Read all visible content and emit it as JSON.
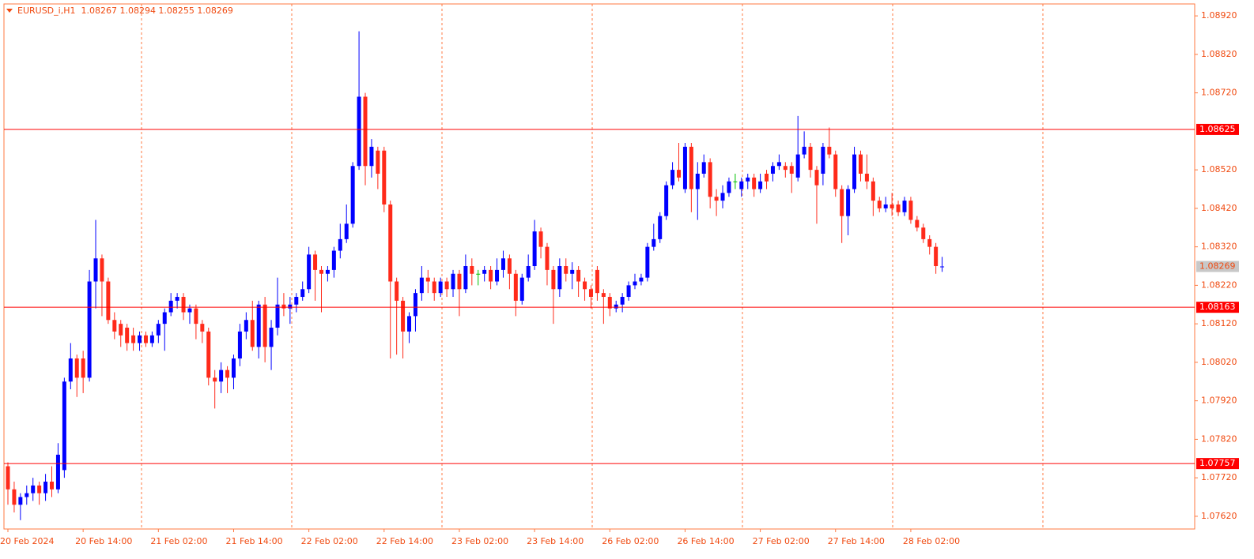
{
  "chart_data": {
    "type": "candlestick",
    "title": "EURUSD_i,H1  1.08267 1.08294 1.08255 1.08269",
    "categories": [
      "20 Feb 2024",
      null,
      null,
      null,
      null,
      null,
      null,
      null,
      null,
      null,
      null,
      null,
      "20 Feb 14:00",
      null,
      null,
      null,
      null,
      null,
      null,
      null,
      null,
      null,
      null,
      null,
      "21 Feb 02:00",
      null,
      null,
      null,
      null,
      null,
      null,
      null,
      null,
      null,
      null,
      null,
      "21 Feb 14:00",
      null,
      null,
      null,
      null,
      null,
      null,
      null,
      null,
      null,
      null,
      null,
      "22 Feb 02:00",
      null,
      null,
      null,
      null,
      null,
      null,
      null,
      null,
      null,
      null,
      null,
      "22 Feb 14:00",
      null,
      null,
      null,
      null,
      null,
      null,
      null,
      null,
      null,
      null,
      null,
      "23 Feb 02:00",
      null,
      null,
      null,
      null,
      null,
      null,
      null,
      null,
      null,
      null,
      null,
      "23 Feb 14:00",
      null,
      null,
      null,
      null,
      null,
      null,
      null,
      null,
      null,
      null,
      null,
      "26 Feb 02:00",
      null,
      null,
      null,
      null,
      null,
      null,
      null,
      null,
      null,
      null,
      null,
      "26 Feb 14:00",
      null,
      null,
      null,
      null,
      null,
      null,
      null,
      null,
      null,
      null,
      null,
      "27 Feb 02:00",
      null,
      null,
      null,
      null,
      null,
      null,
      null,
      null,
      null,
      null,
      null,
      "27 Feb 14:00",
      null,
      null,
      null,
      null,
      null,
      null,
      null,
      null,
      null,
      null,
      null,
      "28 Feb 02:00",
      null,
      null,
      null,
      null,
      null
    ],
    "open": [
      1.0775,
      1.0769,
      1.0765,
      1.0767,
      1.0768,
      1.077,
      1.0768,
      1.0771,
      1.0769,
      1.0774,
      1.0797,
      1.0803,
      1.0803,
      1.0798,
      1.0823,
      1.0829,
      1.0823,
      1.0813,
      1.0812,
      1.0811,
      1.0809,
      1.0807,
      1.0809,
      1.0807,
      1.0809,
      1.0812,
      1.0815,
      1.0818,
      1.0819,
      1.0815,
      1.0816,
      1.0812,
      1.081,
      1.0798,
      1.0797,
      1.08,
      1.0798,
      1.0803,
      1.081,
      1.0813,
      1.0806,
      1.0817,
      1.0806,
      1.0811,
      1.0817,
      1.0816,
      1.0817,
      1.0819,
      1.0821,
      1.083,
      1.0826,
      1.0825,
      1.0826,
      1.0831,
      1.0834,
      1.0838,
      1.0853,
      1.0871,
      1.0853,
      1.0857,
      1.0857,
      1.0843,
      1.0823,
      1.0818,
      1.081,
      1.0814,
      1.082,
      1.0824,
      1.0823,
      1.082,
      1.0823,
      1.0821,
      1.0825,
      1.0821,
      1.0827,
      1.0825,
      1.0825,
      1.0826,
      1.0823,
      1.0826,
      1.0829,
      1.0825,
      1.0818,
      1.0824,
      1.0827,
      1.0836,
      1.0832,
      1.0826,
      1.0821,
      1.0827,
      1.0825,
      1.0826,
      1.0823,
      1.0821,
      1.0826,
      1.082,
      1.0819,
      1.0816,
      1.0817,
      1.0819,
      1.0822,
      1.0823,
      1.0824,
      1.0832,
      1.0834,
      1.084,
      1.0848,
      1.0852,
      1.0847,
      1.0858,
      1.0847,
      1.0851,
      1.0854,
      1.0845,
      1.0844,
      1.0846,
      1.0849,
      1.0847,
      1.0849,
      1.085,
      1.0847,
      1.0851,
      1.0851,
      1.0853,
      1.0853,
      1.0853,
      1.085,
      1.0856,
      1.0858,
      1.0852,
      1.0851,
      1.0858,
      1.0856,
      1.0847,
      1.084,
      1.0847,
      1.0856,
      1.0851,
      1.0849,
      1.0844,
      1.0842,
      1.0843,
      1.0843,
      1.0841,
      1.0844,
      1.0839,
      1.0837,
      1.0834,
      1.0832,
      1.08267
    ],
    "high": [
      1.0776,
      1.0771,
      1.0768,
      1.077,
      1.0772,
      1.0771,
      1.0773,
      1.0775,
      1.0781,
      1.0798,
      1.0807,
      1.0804,
      1.0805,
      1.0826,
      1.0839,
      1.083,
      1.0824,
      1.0815,
      1.0813,
      1.0812,
      1.0811,
      1.081,
      1.081,
      1.081,
      1.0813,
      1.0816,
      1.082,
      1.082,
      1.082,
      1.0817,
      1.0817,
      1.0813,
      1.0811,
      1.08,
      1.0802,
      1.0801,
      1.0804,
      1.0812,
      1.0815,
      1.0818,
      1.0818,
      1.0819,
      1.0813,
      1.0824,
      1.082,
      1.0819,
      1.082,
      1.0823,
      1.0832,
      1.0831,
      1.0827,
      1.0827,
      1.0832,
      1.0838,
      1.0843,
      1.0854,
      1.0888,
      1.0872,
      1.086,
      1.0858,
      1.0858,
      1.0844,
      1.0824,
      1.0819,
      1.0815,
      1.0821,
      1.0827,
      1.0826,
      1.0824,
      1.0824,
      1.0824,
      1.0826,
      1.0826,
      1.083,
      1.0829,
      1.0826,
      1.0827,
      1.0827,
      1.0829,
      1.0831,
      1.083,
      1.0826,
      1.0825,
      1.083,
      1.0839,
      1.0837,
      1.0833,
      1.0827,
      1.0829,
      1.0829,
      1.0828,
      1.0827,
      1.0824,
      1.0822,
      1.0827,
      1.0821,
      1.082,
      1.0818,
      1.082,
      1.0823,
      1.0825,
      1.0825,
      1.0833,
      1.0838,
      1.0841,
      1.0849,
      1.0854,
      1.0859,
      1.0859,
      1.0859,
      1.0854,
      1.0856,
      1.0855,
      1.0847,
      1.0848,
      1.085,
      1.0851,
      1.085,
      1.0851,
      1.0851,
      1.0851,
      1.0852,
      1.0854,
      1.0856,
      1.0854,
      1.0854,
      1.0866,
      1.0862,
      1.0859,
      1.0853,
      1.0859,
      1.0863,
      1.0857,
      1.0848,
      1.0848,
      1.0858,
      1.0857,
      1.0856,
      1.085,
      1.0845,
      1.0845,
      1.0846,
      1.0844,
      1.0845,
      1.0845,
      1.084,
      1.0838,
      1.0835,
      1.0833,
      1.08294
    ],
    "low": [
      1.0765,
      1.0763,
      1.0761,
      1.0765,
      1.0766,
      1.0765,
      1.0766,
      1.0767,
      1.0768,
      1.0772,
      1.0795,
      1.0793,
      1.0794,
      1.0797,
      1.0816,
      1.0814,
      1.0812,
      1.0808,
      1.0806,
      1.0805,
      1.0805,
      1.0805,
      1.0806,
      1.0806,
      1.0807,
      1.0805,
      1.0814,
      1.0816,
      1.0813,
      1.0812,
      1.0808,
      1.0807,
      1.0796,
      1.079,
      1.0794,
      1.0794,
      1.0795,
      1.0801,
      1.0808,
      1.0805,
      1.0803,
      1.0802,
      1.08,
      1.0809,
      1.0814,
      1.0812,
      1.0815,
      1.0818,
      1.082,
      1.0818,
      1.0815,
      1.0823,
      1.0824,
      1.0829,
      1.0833,
      1.0837,
      1.0852,
      1.0848,
      1.085,
      1.0847,
      1.0841,
      1.0803,
      1.0804,
      1.0803,
      1.0807,
      1.081,
      1.0818,
      1.082,
      1.0818,
      1.0819,
      1.0819,
      1.0819,
      1.0814,
      1.082,
      1.0822,
      1.0822,
      1.0823,
      1.0821,
      1.0822,
      1.0824,
      1.0821,
      1.0814,
      1.0817,
      1.0823,
      1.0826,
      1.0829,
      1.0822,
      1.0812,
      1.0819,
      1.0823,
      1.0821,
      1.0819,
      1.0818,
      1.0816,
      1.0818,
      1.0812,
      1.0814,
      1.0815,
      1.0815,
      1.0818,
      1.0821,
      1.0822,
      1.0823,
      1.0831,
      1.0833,
      1.0839,
      1.0847,
      1.0849,
      1.0846,
      1.0841,
      1.0839,
      1.085,
      1.0842,
      1.084,
      1.0842,
      1.0845,
      1.0847,
      1.0845,
      1.0847,
      1.0845,
      1.0846,
      1.0847,
      1.0849,
      1.0852,
      1.085,
      1.0846,
      1.0849,
      1.0855,
      1.085,
      1.0838,
      1.0848,
      1.0855,
      1.0845,
      1.0833,
      1.0835,
      1.0846,
      1.0849,
      1.0847,
      1.084,
      1.0841,
      1.0841,
      1.084,
      1.084,
      1.084,
      1.0838,
      1.0836,
      1.0833,
      1.083,
      1.0825,
      1.08255
    ],
    "close": [
      1.0769,
      1.0765,
      1.0767,
      1.0768,
      1.077,
      1.0768,
      1.0771,
      1.0769,
      1.0778,
      1.0797,
      1.0803,
      1.0798,
      1.0798,
      1.0823,
      1.0829,
      1.0823,
      1.0813,
      1.081,
      1.0809,
      1.0807,
      1.0807,
      1.0809,
      1.0807,
      1.0809,
      1.0812,
      1.0815,
      1.0818,
      1.0819,
      1.0815,
      1.0816,
      1.0812,
      1.081,
      1.0798,
      1.0797,
      1.08,
      1.0798,
      1.0803,
      1.081,
      1.0813,
      1.0806,
      1.0817,
      1.0806,
      1.0811,
      1.0817,
      1.0816,
      1.0817,
      1.0819,
      1.0821,
      1.083,
      1.0826,
      1.0825,
      1.0826,
      1.0831,
      1.0834,
      1.0838,
      1.0853,
      1.0871,
      1.0853,
      1.0858,
      1.0851,
      1.0843,
      1.0823,
      1.0818,
      1.081,
      1.0814,
      1.082,
      1.0824,
      1.0823,
      1.082,
      1.0823,
      1.0821,
      1.0825,
      1.0821,
      1.0827,
      1.0825,
      1.0825,
      1.0826,
      1.0823,
      1.0826,
      1.0829,
      1.0825,
      1.0818,
      1.0824,
      1.0827,
      1.0836,
      1.0832,
      1.0826,
      1.0821,
      1.0827,
      1.0825,
      1.0826,
      1.0823,
      1.0821,
      1.0819,
      1.082,
      1.0819,
      1.0816,
      1.0817,
      1.0819,
      1.0822,
      1.0823,
      1.0824,
      1.0832,
      1.0834,
      1.084,
      1.0848,
      1.0852,
      1.085,
      1.0858,
      1.0847,
      1.0851,
      1.0854,
      1.0845,
      1.0844,
      1.0846,
      1.0849,
      1.0849,
      1.0849,
      1.085,
      1.0847,
      1.0849,
      1.0849,
      1.0853,
      1.0854,
      1.0852,
      1.0851,
      1.0856,
      1.0858,
      1.0852,
      1.0848,
      1.0858,
      1.0856,
      1.0847,
      1.084,
      1.0847,
      1.0856,
      1.0851,
      1.0849,
      1.0844,
      1.0842,
      1.0843,
      1.0842,
      1.0841,
      1.0844,
      1.0839,
      1.0837,
      1.0834,
      1.0832,
      1.0827,
      1.08269
    ],
    "up_color": "#0000ff",
    "down_color": "#ff2a1a",
    "doji_color": "#00c000",
    "ylim": [
      1.07587,
      1.08951
    ],
    "yticks": [
      {
        "value": 1.0892,
        "label": "1.08920"
      },
      {
        "value": 1.0882,
        "label": "1.08820"
      },
      {
        "value": 1.0872,
        "label": "1.08720"
      },
      {
        "value": 1.0852,
        "label": "1.08520"
      },
      {
        "value": 1.0842,
        "label": "1.08420"
      },
      {
        "value": 1.0832,
        "label": "1.08320"
      },
      {
        "value": 1.0822,
        "label": "1.08220"
      },
      {
        "value": 1.0812,
        "label": "1.08120"
      },
      {
        "value": 1.0802,
        "label": "1.08020"
      },
      {
        "value": 1.0792,
        "label": "1.07920"
      },
      {
        "value": 1.0782,
        "label": "1.07820"
      },
      {
        "value": 1.0772,
        "label": "1.07720"
      },
      {
        "value": 1.0762,
        "label": "1.07620"
      }
    ],
    "levels": [
      {
        "value": 1.08625,
        "label": "1.08625"
      },
      {
        "value": 1.08163,
        "label": "1.08163"
      },
      {
        "value": 1.07757,
        "label": "1.07757"
      }
    ],
    "level_color": "#ff0000",
    "last_price": {
      "value": 1.08269,
      "label": "1.08269"
    }
  }
}
